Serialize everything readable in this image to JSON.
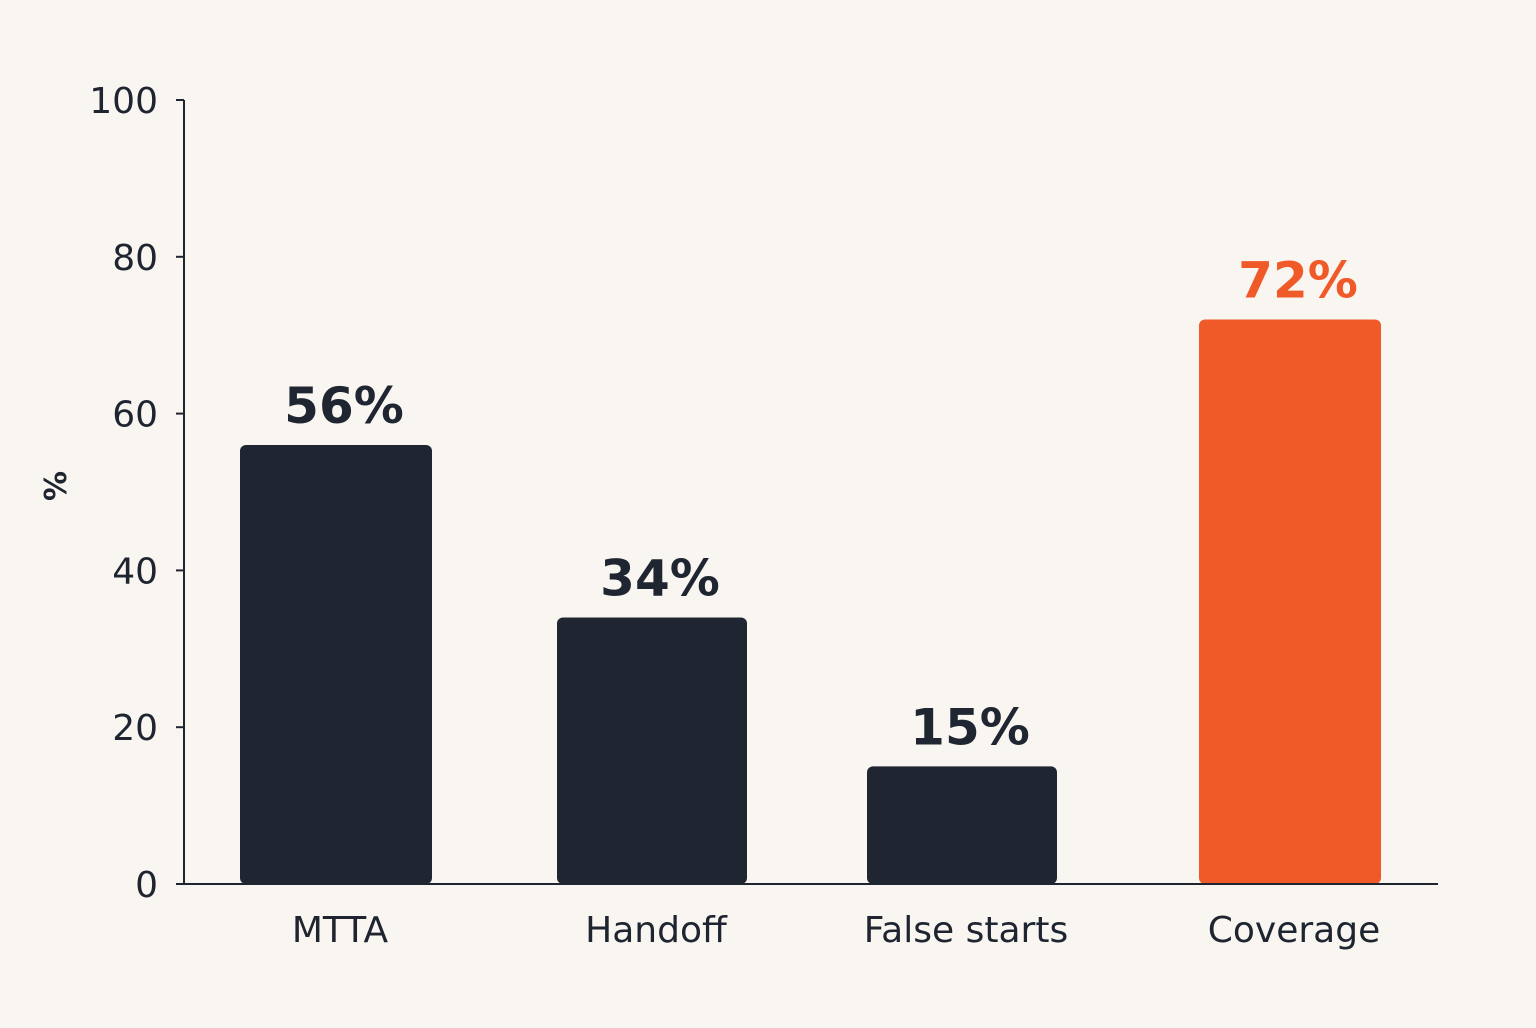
{
  "chart_data": {
    "type": "bar",
    "title": "",
    "xlabel": "",
    "ylabel": "%",
    "ylim": [
      0,
      100
    ],
    "yticks": [
      0,
      20,
      40,
      60,
      80,
      100
    ],
    "categories": [
      "MTTA",
      "Handoff",
      "False starts",
      "Coverage"
    ],
    "values": [
      56,
      34,
      15,
      72
    ],
    "data_labels": [
      "56%",
      "34%",
      "15%",
      "72%"
    ],
    "bar_colors": [
      "#1f2631",
      "#1f2631",
      "#1f2631",
      "#f05a28"
    ],
    "label_colors": [
      "#1f2631",
      "#1f2631",
      "#1f2631",
      "#f05a28"
    ],
    "grid": false,
    "legend": "none"
  }
}
